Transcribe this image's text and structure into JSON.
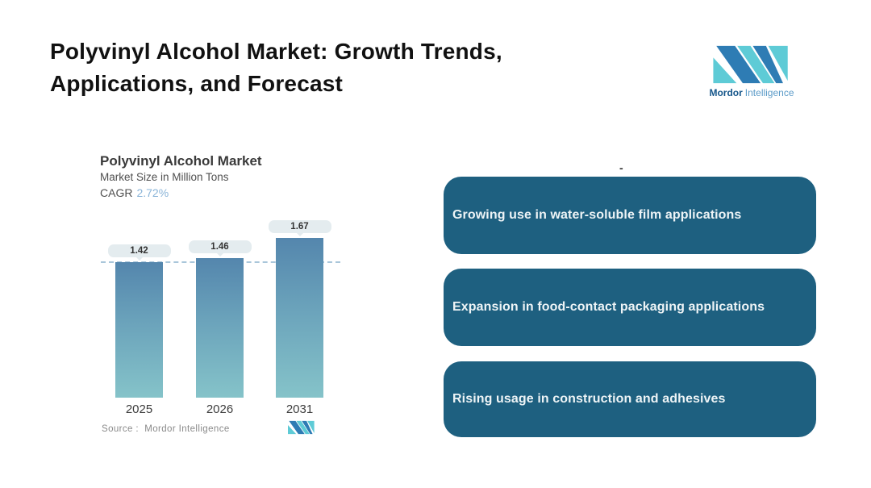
{
  "header": {
    "title_line1": "Polyvinyl Alcohol Market: Growth Trends,",
    "title_line2": "Applications, and Forecast"
  },
  "logo": {
    "brand_bold": "Mordor",
    "brand_light": "Intelligence",
    "blue": "#2e7cb4",
    "teal": "#5ecbd6"
  },
  "chart": {
    "title": "Polyvinyl Alcohol Market",
    "subtitle": "Market Size in Million Tons",
    "cagr_label": "CAGR",
    "cagr_value": "2.72%",
    "source_label": "Source :",
    "source_value": "Mordor Intelligence"
  },
  "chart_data": {
    "type": "bar",
    "categories": [
      "2025",
      "2026",
      "2031"
    ],
    "values": [
      1.42,
      1.46,
      1.67
    ],
    "title": "Polyvinyl Alcohol Market",
    "subtitle": "Market Size in Million Tons",
    "cagr": "2.72%",
    "ylim": [
      0,
      1.88
    ],
    "reference_line": 1.42,
    "data_labels": [
      "1.42",
      "1.46",
      "1.67"
    ],
    "bar_color_top": "#5486ad",
    "bar_color_bottom": "#85c3c9",
    "grid": "off",
    "legend": "none"
  },
  "callouts": {
    "stray_mark": "-",
    "box_color": "#1e6080",
    "items": [
      {
        "label": "Growing use in water-soluble film applications"
      },
      {
        "label": "Expansion in food-contact packaging applications"
      },
      {
        "label": "Rising usage in construction and adhesives"
      }
    ]
  }
}
